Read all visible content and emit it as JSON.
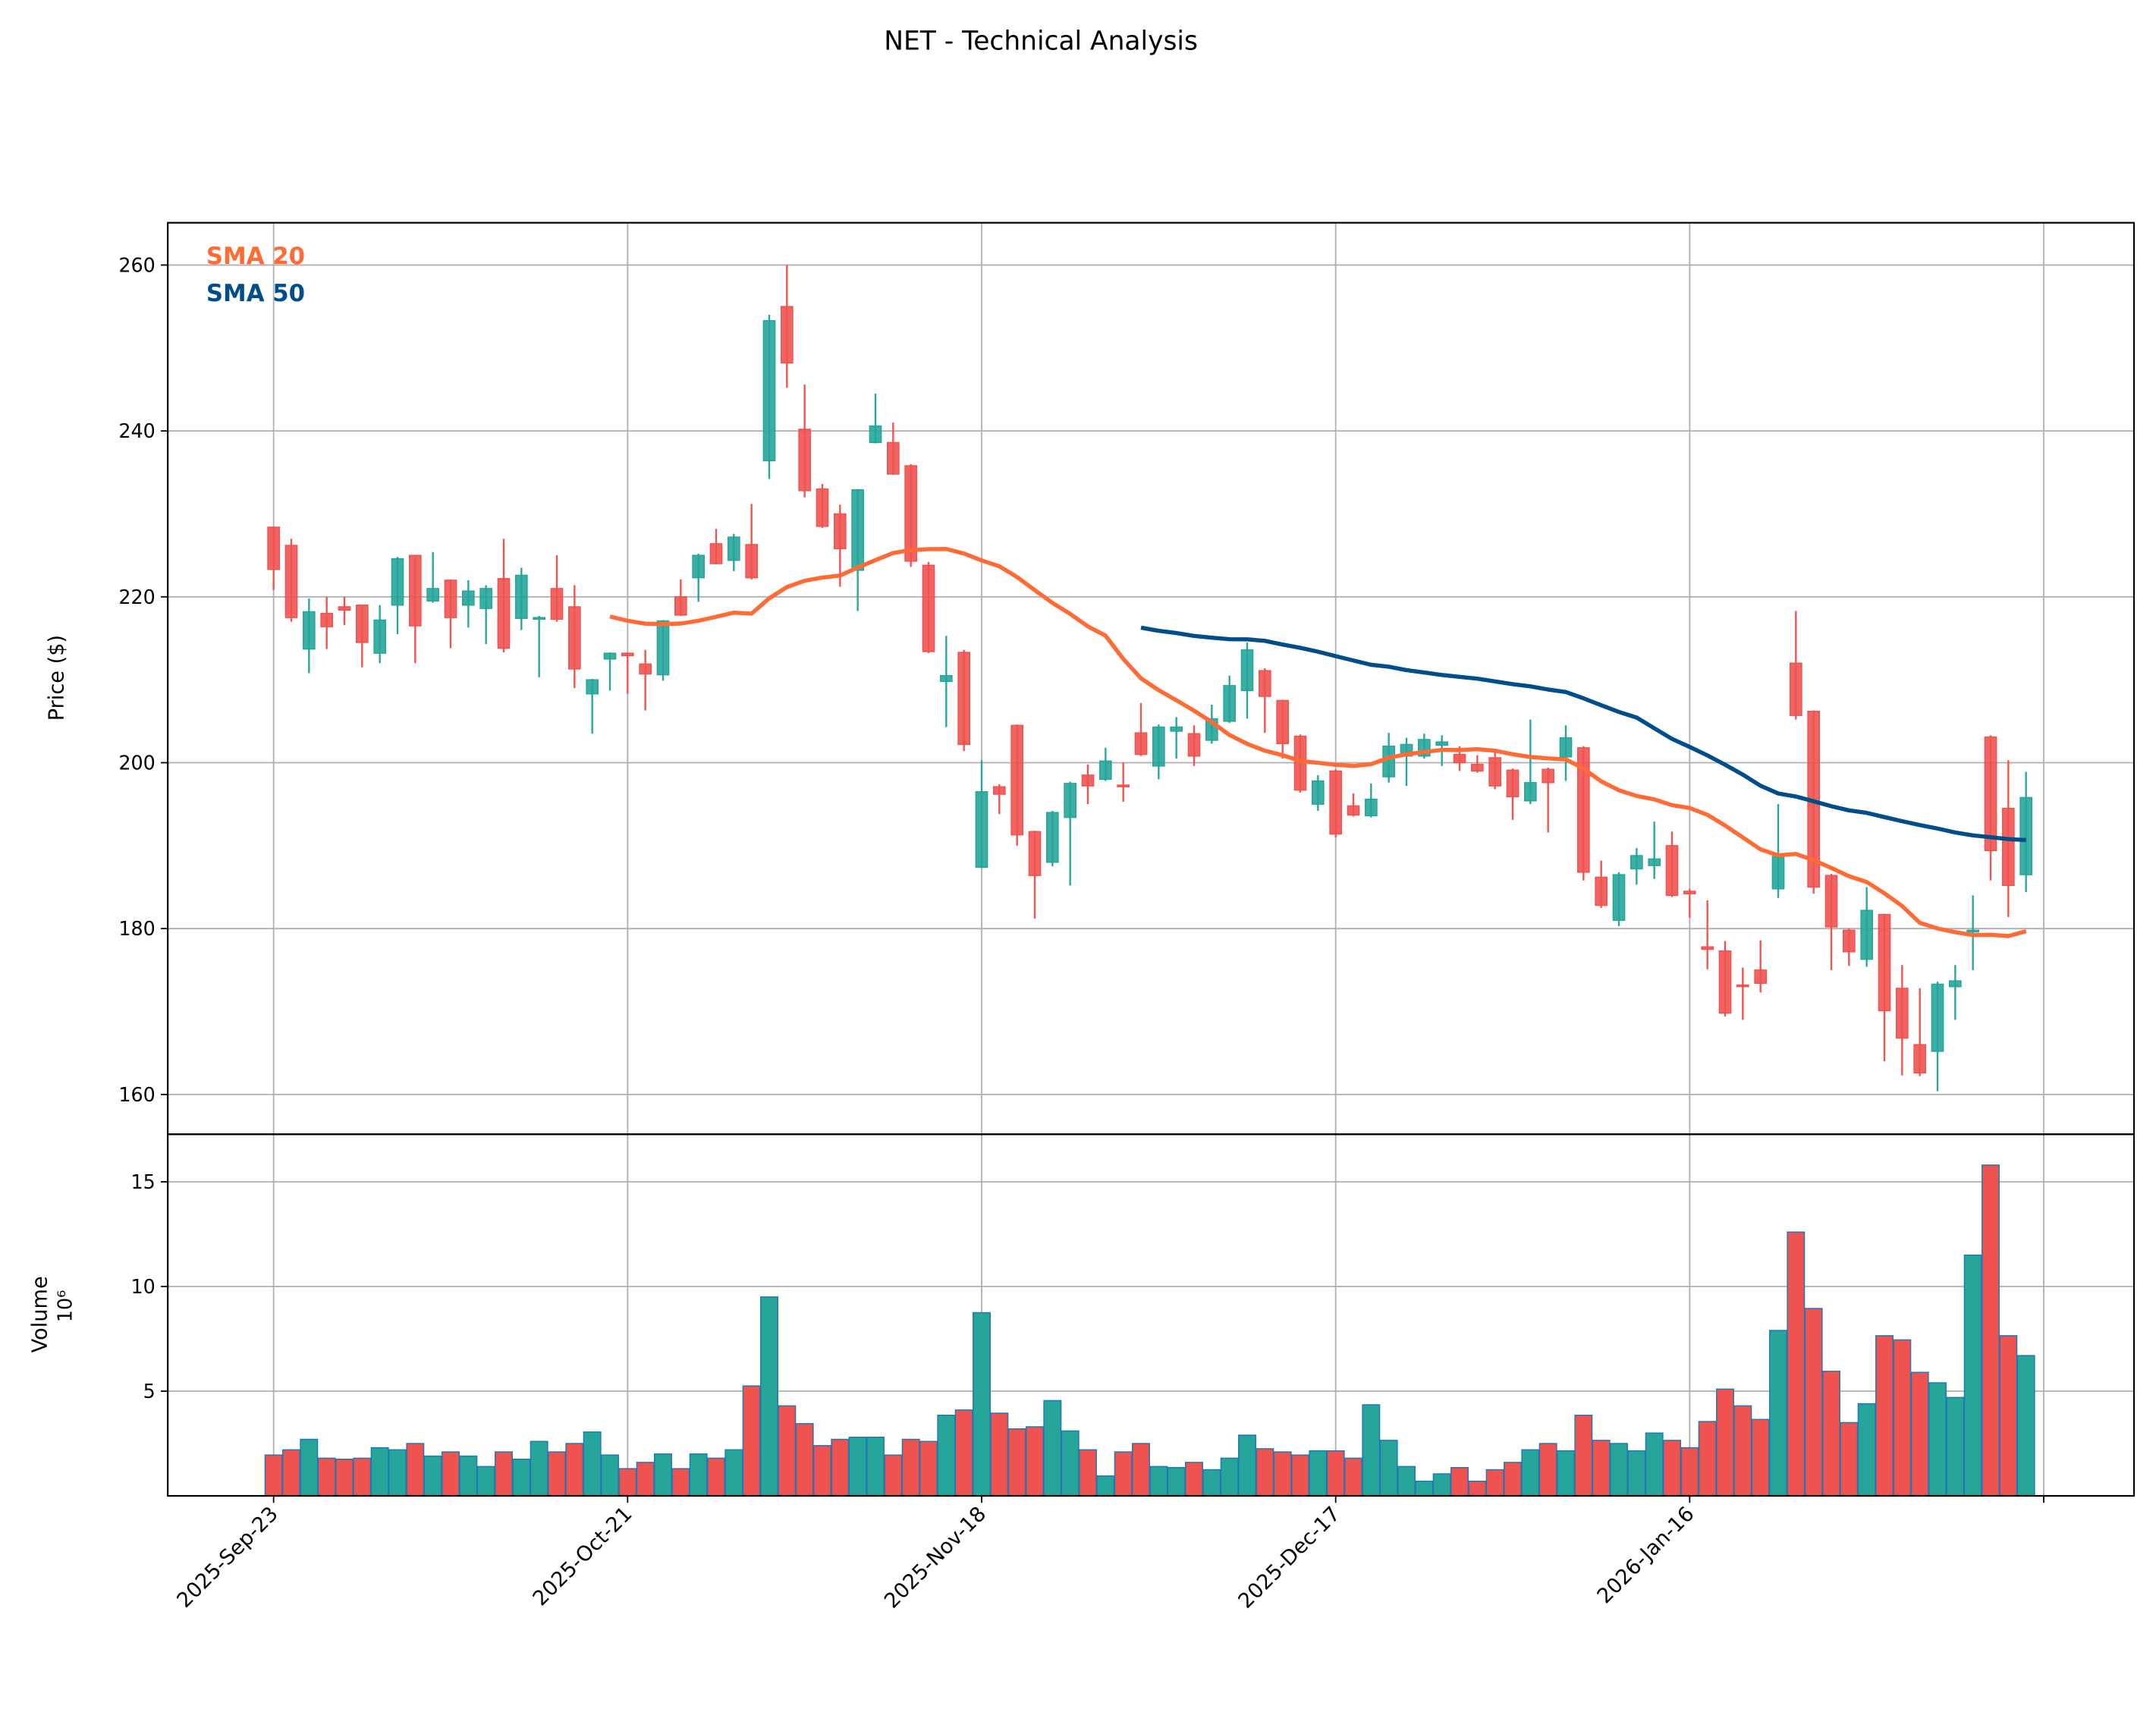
{
  "chart_data": {
    "type": "candlestick",
    "title": "NET - Technical Analysis",
    "price_panel": {
      "ylabel": "Price ($)",
      "ylim": [
        155.2,
        265.1
      ],
      "yticks": [
        160,
        180,
        200,
        220,
        240,
        260
      ],
      "grid": true
    },
    "volume_panel": {
      "ylabel": "Volume",
      "offset_label": "10⁶",
      "ylim": [
        0,
        17.27
      ],
      "yticks": [
        5,
        10,
        15
      ],
      "grid": true
    },
    "xtick_labels": [
      "2025-Sep-23",
      "2025-Oct-21",
      "2025-Nov-18",
      "2025-Dec-17",
      "2026-Jan-16",
      ""
    ],
    "xtick_index": [
      0,
      20,
      40,
      60,
      80,
      100
    ],
    "xlim_index": [
      -5.98,
      105.1
    ],
    "legend": [
      {
        "label": "SMA 20",
        "color": "#ff6b35",
        "window": 20
      },
      {
        "label": "SMA 50",
        "color": "#004e89",
        "window": 50
      }
    ],
    "legend_position": "top-left",
    "colors": {
      "up": "#26a69a",
      "down": "#ef5350"
    },
    "ohlc": [
      [
        228.4,
        228.5,
        220.8,
        223.3
      ],
      [
        226.2,
        227.0,
        217.0,
        217.5
      ],
      [
        213.7,
        219.8,
        210.8,
        218.2
      ],
      [
        218.0,
        220.0,
        213.7,
        216.4
      ],
      [
        218.8,
        220.0,
        216.6,
        218.4
      ],
      [
        219.0,
        219.0,
        211.5,
        214.5
      ],
      [
        213.2,
        219.0,
        212.0,
        217.2
      ],
      [
        219.0,
        224.8,
        215.5,
        224.6
      ],
      [
        225.0,
        225.0,
        212.0,
        216.5
      ],
      [
        219.5,
        225.4,
        219.3,
        221.0
      ],
      [
        222.0,
        222.1,
        213.8,
        217.5
      ],
      [
        219.0,
        222.0,
        216.3,
        220.7
      ],
      [
        218.6,
        221.4,
        214.3,
        221.0
      ],
      [
        222.2,
        227.0,
        213.3,
        213.8
      ],
      [
        217.4,
        223.5,
        216.0,
        222.6
      ],
      [
        217.3,
        217.7,
        210.3,
        217.5
      ],
      [
        221.0,
        225.0,
        217.0,
        217.3
      ],
      [
        218.8,
        221.4,
        209.0,
        211.3
      ],
      [
        208.3,
        210.1,
        203.5,
        210.0
      ],
      [
        212.5,
        213.3,
        208.7,
        213.2
      ],
      [
        213.2,
        213.3,
        208.3,
        212.9
      ],
      [
        211.9,
        213.6,
        206.3,
        210.7
      ],
      [
        210.6,
        217.2,
        209.9,
        217.1
      ],
      [
        220.0,
        222.1,
        217.7,
        217.8
      ],
      [
        222.3,
        225.2,
        219.4,
        225.0
      ],
      [
        226.4,
        228.2,
        223.9,
        224.0
      ],
      [
        224.4,
        227.6,
        223.1,
        227.2
      ],
      [
        226.3,
        231.2,
        222.1,
        222.3
      ],
      [
        236.4,
        254.0,
        234.2,
        253.3
      ],
      [
        255.0,
        260.0,
        245.2,
        248.2
      ],
      [
        240.2,
        245.6,
        232.0,
        232.8
      ],
      [
        233.0,
        233.6,
        228.3,
        228.5
      ],
      [
        230.0,
        231.1,
        221.2,
        225.8
      ],
      [
        223.2,
        233.0,
        218.3,
        232.9
      ],
      [
        238.6,
        244.5,
        238.5,
        240.6
      ],
      [
        238.6,
        241.0,
        234.7,
        234.8
      ],
      [
        235.8,
        236.0,
        223.6,
        224.3
      ],
      [
        223.8,
        224.2,
        213.2,
        213.4
      ],
      [
        209.8,
        215.3,
        204.3,
        210.5
      ],
      [
        213.3,
        213.6,
        201.4,
        202.2
      ],
      [
        187.4,
        200.3,
        187.3,
        196.5
      ],
      [
        197.1,
        197.4,
        193.8,
        196.2
      ],
      [
        204.5,
        204.6,
        190.0,
        191.3
      ],
      [
        191.7,
        191.8,
        181.2,
        186.4
      ],
      [
        188.0,
        194.2,
        187.5,
        194.0
      ],
      [
        193.4,
        197.7,
        185.2,
        197.5
      ],
      [
        198.5,
        199.8,
        195.0,
        197.2
      ],
      [
        198.0,
        201.8,
        197.8,
        200.2
      ],
      [
        197.3,
        200.0,
        195.3,
        197.1
      ],
      [
        203.6,
        207.2,
        200.8,
        201.0
      ],
      [
        199.6,
        204.6,
        198.0,
        204.3
      ],
      [
        203.8,
        205.5,
        200.5,
        204.3
      ],
      [
        203.5,
        204.5,
        199.6,
        200.8
      ],
      [
        202.7,
        207.0,
        202.3,
        205.3
      ],
      [
        205.0,
        210.5,
        204.8,
        209.3
      ],
      [
        208.7,
        214.5,
        205.3,
        213.6
      ],
      [
        211.1,
        211.4,
        203.6,
        208.0
      ],
      [
        207.5,
        207.6,
        200.5,
        202.3
      ],
      [
        203.2,
        203.4,
        196.4,
        196.7
      ],
      [
        195.0,
        198.5,
        194.2,
        197.8
      ],
      [
        199.0,
        199.2,
        191.0,
        191.4
      ],
      [
        194.8,
        196.3,
        193.5,
        193.7
      ],
      [
        193.6,
        197.5,
        193.4,
        195.6
      ],
      [
        198.3,
        203.6,
        197.6,
        202.0
      ],
      [
        200.8,
        203.0,
        197.2,
        202.2
      ],
      [
        200.8,
        203.5,
        200.5,
        202.8
      ],
      [
        202.1,
        203.3,
        199.6,
        202.5
      ],
      [
        201.0,
        202.0,
        199.0,
        200.0
      ],
      [
        199.8,
        200.9,
        198.8,
        199.0
      ],
      [
        200.6,
        201.2,
        196.8,
        197.2
      ],
      [
        199.1,
        199.3,
        193.1,
        195.9
      ],
      [
        195.4,
        205.2,
        195.0,
        197.6
      ],
      [
        199.2,
        199.4,
        191.6,
        197.6
      ],
      [
        200.7,
        204.5,
        197.8,
        203.0
      ],
      [
        201.8,
        202.0,
        185.8,
        186.8
      ],
      [
        186.2,
        188.2,
        182.5,
        182.8
      ],
      [
        181.0,
        186.8,
        180.3,
        186.5
      ],
      [
        187.2,
        189.7,
        185.3,
        188.8
      ],
      [
        187.6,
        192.9,
        186.0,
        188.4
      ],
      [
        190.0,
        191.7,
        183.8,
        184.0
      ],
      [
        184.5,
        184.8,
        181.3,
        184.2
      ],
      [
        177.8,
        183.4,
        175.1,
        177.5
      ],
      [
        177.3,
        178.5,
        169.4,
        169.8
      ],
      [
        173.2,
        175.3,
        169.0,
        173.1
      ],
      [
        175.0,
        178.6,
        172.3,
        173.4
      ],
      [
        184.8,
        195.0,
        183.7,
        188.7
      ],
      [
        212.0,
        218.3,
        205.2,
        205.7
      ],
      [
        206.2,
        206.3,
        184.2,
        185.0
      ],
      [
        186.4,
        186.6,
        175.0,
        180.2
      ],
      [
        179.8,
        180.0,
        175.5,
        177.2
      ],
      [
        176.3,
        185.0,
        175.4,
        182.2
      ],
      [
        181.7,
        181.8,
        164.0,
        170.1
      ],
      [
        172.8,
        175.6,
        162.3,
        166.8
      ],
      [
        166.0,
        172.8,
        162.2,
        162.6
      ],
      [
        165.2,
        173.6,
        160.4,
        173.3
      ],
      [
        173.0,
        175.6,
        169.0,
        173.7
      ],
      [
        179.6,
        184.0,
        175.0,
        179.8
      ],
      [
        203.1,
        203.3,
        185.8,
        189.4
      ],
      [
        194.5,
        200.3,
        181.4,
        185.2
      ],
      [
        186.5,
        198.9,
        184.4,
        195.8
      ]
    ],
    "volume_millions": [
      1.95,
      2.2,
      2.7,
      1.8,
      1.75,
      1.8,
      2.3,
      2.2,
      2.5,
      1.9,
      2.1,
      1.9,
      1.4,
      2.1,
      1.75,
      2.6,
      2.1,
      2.5,
      3.05,
      1.95,
      1.3,
      1.6,
      2.0,
      1.3,
      2.0,
      1.8,
      2.2,
      5.25,
      9.5,
      4.3,
      3.45,
      2.4,
      2.7,
      2.8,
      2.8,
      1.95,
      2.7,
      2.6,
      3.85,
      4.1,
      8.75,
      3.95,
      3.2,
      3.3,
      4.55,
      3.1,
      2.2,
      0.95,
      2.1,
      2.5,
      1.4,
      1.35,
      1.6,
      1.25,
      1.8,
      2.9,
      2.25,
      2.1,
      1.95,
      2.15,
      2.15,
      1.8,
      4.35,
      2.65,
      1.4,
      0.7,
      1.05,
      1.35,
      0.7,
      1.25,
      1.6,
      2.2,
      2.5,
      2.15,
      3.85,
      2.65,
      2.5,
      2.15,
      3.0,
      2.65,
      2.3,
      3.55,
      5.1,
      4.3,
      3.65,
      7.9,
      12.6,
      8.95,
      5.95,
      3.5,
      4.4,
      7.65,
      7.45,
      5.9,
      5.4,
      4.7,
      11.5,
      15.8,
      7.65,
      6.7
    ]
  }
}
